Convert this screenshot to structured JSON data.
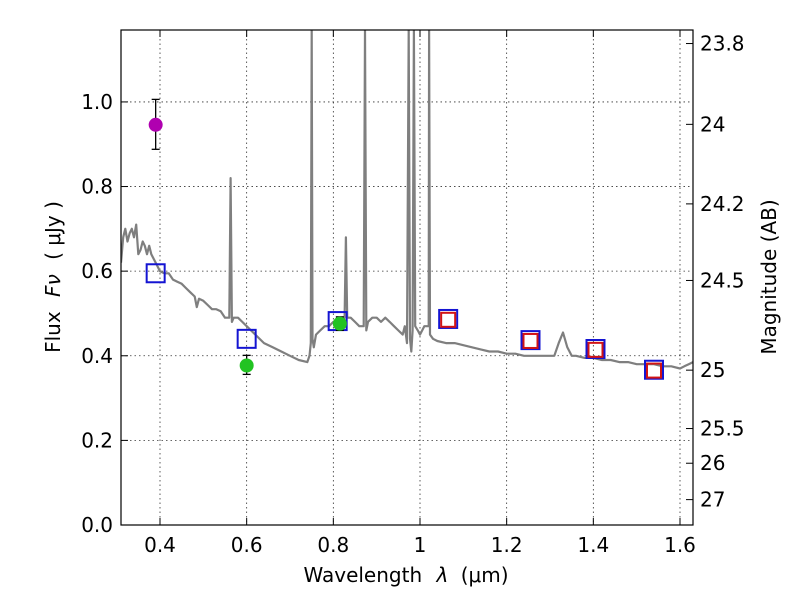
{
  "chart_data": {
    "type": "scatter",
    "title": "",
    "xlabel": "Wavelength",
    "xlabel_symbol": "λ",
    "xlabel_unit": "(μm)",
    "ylabel": "Flux",
    "ylabel_symbol": "Fν",
    "ylabel_unit": "( μJy )",
    "y2label": "Magnitude (AB)",
    "xlim": [
      0.31,
      1.63
    ],
    "ylim": [
      0.0,
      1.17
    ],
    "grid": true,
    "x_ticks": [
      {
        "value": 0.4,
        "label": "0.4"
      },
      {
        "value": 0.6,
        "label": "0.6"
      },
      {
        "value": 0.8,
        "label": "0.8"
      },
      {
        "value": 1.0,
        "label": "1"
      },
      {
        "value": 1.2,
        "label": "1.2"
      },
      {
        "value": 1.4,
        "label": "1.4"
      },
      {
        "value": 1.6,
        "label": "1.6"
      }
    ],
    "y_ticks": [
      {
        "value": 0.0,
        "label": "0.0"
      },
      {
        "value": 0.2,
        "label": "0.2"
      },
      {
        "value": 0.4,
        "label": "0.4"
      },
      {
        "value": 0.6,
        "label": "0.6"
      },
      {
        "value": 0.8,
        "label": "0.8"
      },
      {
        "value": 1.0,
        "label": "1.0"
      }
    ],
    "y2_ticks": [
      {
        "flux": 1.138,
        "label": "23.8"
      },
      {
        "flux": 0.947,
        "label": "24"
      },
      {
        "flux": 0.759,
        "label": "24.2"
      },
      {
        "flux": 0.578,
        "label": "24.5"
      },
      {
        "flux": 0.366,
        "label": "25"
      },
      {
        "flux": 0.228,
        "label": "25.5"
      },
      {
        "flux": 0.146,
        "label": "26"
      },
      {
        "flux": 0.06,
        "label": "27"
      }
    ],
    "colors": {
      "sed": "#7f7f7f",
      "purple": "#b000b0",
      "green": "#22c322",
      "blue_box": "#1414d2",
      "red_box": "#d21414"
    },
    "series": [
      {
        "name": "model SED",
        "kind": "line",
        "points": [
          [
            0.31,
            0.62
          ],
          [
            0.315,
            0.68
          ],
          [
            0.32,
            0.7
          ],
          [
            0.325,
            0.67
          ],
          [
            0.33,
            0.69
          ],
          [
            0.335,
            0.7
          ],
          [
            0.34,
            0.68
          ],
          [
            0.345,
            0.71
          ],
          [
            0.35,
            0.64
          ],
          [
            0.355,
            0.65
          ],
          [
            0.36,
            0.67
          ],
          [
            0.365,
            0.66
          ],
          [
            0.37,
            0.64
          ],
          [
            0.375,
            0.66
          ],
          [
            0.38,
            0.64
          ],
          [
            0.385,
            0.63
          ],
          [
            0.39,
            0.62
          ],
          [
            0.4,
            0.6
          ],
          [
            0.41,
            0.595
          ],
          [
            0.42,
            0.595
          ],
          [
            0.43,
            0.58
          ],
          [
            0.44,
            0.575
          ],
          [
            0.45,
            0.57
          ],
          [
            0.46,
            0.56
          ],
          [
            0.47,
            0.55
          ],
          [
            0.48,
            0.54
          ],
          [
            0.485,
            0.515
          ],
          [
            0.49,
            0.535
          ],
          [
            0.5,
            0.53
          ],
          [
            0.51,
            0.52
          ],
          [
            0.52,
            0.51
          ],
          [
            0.53,
            0.51
          ],
          [
            0.54,
            0.505
          ],
          [
            0.55,
            0.49
          ],
          [
            0.555,
            0.49
          ],
          [
            0.56,
            0.49
          ],
          [
            0.563,
            0.82
          ],
          [
            0.566,
            0.48
          ],
          [
            0.57,
            0.49
          ],
          [
            0.58,
            0.49
          ],
          [
            0.59,
            0.48
          ],
          [
            0.6,
            0.47
          ],
          [
            0.62,
            0.45
          ],
          [
            0.64,
            0.43
          ],
          [
            0.66,
            0.42
          ],
          [
            0.68,
            0.41
          ],
          [
            0.7,
            0.4
          ],
          [
            0.72,
            0.39
          ],
          [
            0.74,
            0.385
          ],
          [
            0.745,
            0.4
          ],
          [
            0.748,
            0.43
          ],
          [
            0.75,
            1.17
          ],
          [
            0.752,
            0.44
          ],
          [
            0.755,
            0.42
          ],
          [
            0.76,
            0.45
          ],
          [
            0.77,
            0.46
          ],
          [
            0.78,
            0.47
          ],
          [
            0.79,
            0.47
          ],
          [
            0.8,
            0.48
          ],
          [
            0.81,
            0.48
          ],
          [
            0.82,
            0.48
          ],
          [
            0.826,
            0.49
          ],
          [
            0.829,
            0.68
          ],
          [
            0.832,
            0.49
          ],
          [
            0.84,
            0.49
          ],
          [
            0.85,
            0.48
          ],
          [
            0.86,
            0.47
          ],
          [
            0.87,
            0.47
          ],
          [
            0.873,
            1.17
          ],
          [
            0.876,
            0.46
          ],
          [
            0.88,
            0.48
          ],
          [
            0.89,
            0.49
          ],
          [
            0.9,
            0.49
          ],
          [
            0.91,
            0.48
          ],
          [
            0.92,
            0.49
          ],
          [
            0.93,
            0.48
          ],
          [
            0.94,
            0.47
          ],
          [
            0.95,
            0.46
          ],
          [
            0.96,
            0.45
          ],
          [
            0.965,
            0.47
          ],
          [
            0.97,
            0.43
          ],
          [
            0.974,
            1.17
          ],
          [
            0.977,
            0.44
          ],
          [
            0.98,
            0.41
          ],
          [
            0.983,
            0.46
          ],
          [
            0.986,
            1.17
          ],
          [
            0.989,
            0.47
          ],
          [
            0.995,
            0.46
          ],
          [
            1.0,
            0.45
          ],
          [
            1.005,
            0.46
          ],
          [
            1.01,
            0.47
          ],
          [
            1.02,
            0.47
          ],
          [
            1.021,
            1.17
          ],
          [
            1.023,
            0.45
          ],
          [
            1.03,
            0.44
          ],
          [
            1.04,
            0.435
          ],
          [
            1.06,
            0.43
          ],
          [
            1.08,
            0.43
          ],
          [
            1.1,
            0.425
          ],
          [
            1.12,
            0.42
          ],
          [
            1.14,
            0.415
          ],
          [
            1.16,
            0.41
          ],
          [
            1.18,
            0.41
          ],
          [
            1.2,
            0.405
          ],
          [
            1.22,
            0.405
          ],
          [
            1.24,
            0.4
          ],
          [
            1.26,
            0.4
          ],
          [
            1.28,
            0.4
          ],
          [
            1.3,
            0.4
          ],
          [
            1.31,
            0.4
          ],
          [
            1.32,
            0.43
          ],
          [
            1.33,
            0.455
          ],
          [
            1.34,
            0.42
          ],
          [
            1.35,
            0.4
          ],
          [
            1.36,
            0.4
          ],
          [
            1.38,
            0.395
          ],
          [
            1.4,
            0.395
          ],
          [
            1.42,
            0.39
          ],
          [
            1.44,
            0.39
          ],
          [
            1.46,
            0.385
          ],
          [
            1.48,
            0.385
          ],
          [
            1.5,
            0.38
          ],
          [
            1.52,
            0.38
          ],
          [
            1.54,
            0.38
          ],
          [
            1.56,
            0.375
          ],
          [
            1.58,
            0.375
          ],
          [
            1.6,
            0.37
          ],
          [
            1.61,
            0.375
          ],
          [
            1.62,
            0.38
          ],
          [
            1.63,
            0.385
          ]
        ]
      },
      {
        "name": "blue squares",
        "kind": "open-square",
        "color": "#1414d2",
        "points": [
          {
            "x": 0.39,
            "y": 0.595
          },
          {
            "x": 0.6,
            "y": 0.44
          },
          {
            "x": 0.81,
            "y": 0.482
          },
          {
            "x": 1.065,
            "y": 0.487
          },
          {
            "x": 1.255,
            "y": 0.437
          },
          {
            "x": 1.405,
            "y": 0.416
          },
          {
            "x": 1.54,
            "y": 0.367
          }
        ]
      },
      {
        "name": "red squares",
        "kind": "open-square",
        "color": "#d21414",
        "points": [
          {
            "x": 1.065,
            "y": 0.485
          },
          {
            "x": 1.255,
            "y": 0.435
          },
          {
            "x": 1.405,
            "y": 0.414
          },
          {
            "x": 1.54,
            "y": 0.365
          }
        ]
      },
      {
        "name": "purple point",
        "kind": "filled-circle",
        "color": "#b000b0",
        "points": [
          {
            "x": 0.39,
            "y": 0.946,
            "ylow": 0.888,
            "yhigh": 1.006
          }
        ]
      },
      {
        "name": "green points",
        "kind": "filled-circle",
        "color": "#22c322",
        "points": [
          {
            "x": 0.6,
            "y": 0.377,
            "ylow": 0.356,
            "yhigh": 0.401
          },
          {
            "x": 0.815,
            "y": 0.476,
            "ylow": 0.46,
            "yhigh": 0.492
          }
        ]
      }
    ]
  }
}
